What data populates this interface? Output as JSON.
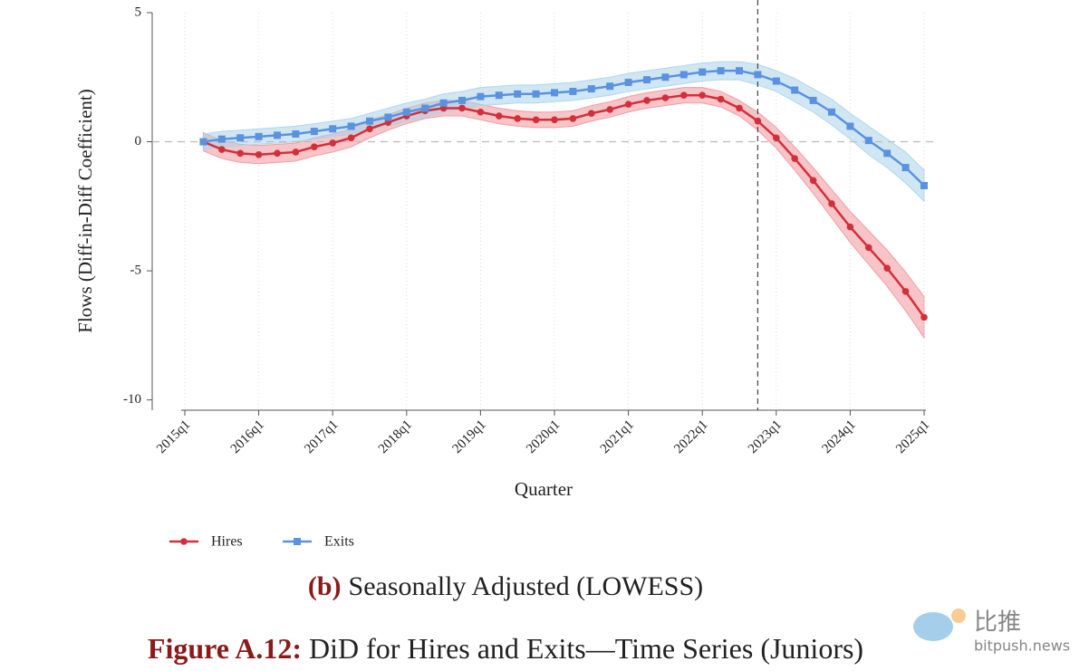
{
  "chart_data": {
    "type": "line",
    "subtitle_label": "(b)",
    "subtitle": "Seasonally Adjusted (LOWESS)",
    "caption_label": "Figure A.12:",
    "caption": "DiD for Hires and Exits—Time Series (Juniors)",
    "xlabel": "Quarter",
    "ylabel": "Flows (Diff-in-Diff Coefficient)",
    "categories": [
      "2015q1",
      null,
      null,
      null,
      "2016q1",
      null,
      null,
      null,
      "2017q1",
      null,
      null,
      null,
      "2018q1",
      null,
      null,
      null,
      "2019q1",
      null,
      null,
      null,
      "2020q1",
      null,
      null,
      null,
      "2021q1",
      null,
      null,
      null,
      "2022q1",
      null,
      null,
      null,
      "2023q1",
      null,
      null,
      null,
      "2024q1",
      null,
      null,
      null,
      "2025q1"
    ],
    "ylim": [
      -10.4,
      5.0
    ],
    "yticks": [
      5,
      0,
      -5,
      -10
    ],
    "reference_lines": {
      "x_index": 31,
      "y": 0
    },
    "grid": true,
    "legend": "bottom-left",
    "series": [
      {
        "name": "Hires",
        "color": "#d32f3b",
        "band_color": "#f0959b",
        "marker": "circle",
        "values": [
          null,
          0,
          -0.3,
          -0.45,
          -0.5,
          -0.45,
          -0.4,
          -0.2,
          -0.05,
          0.15,
          0.5,
          0.75,
          1.0,
          1.2,
          1.3,
          1.3,
          1.15,
          1.0,
          0.9,
          0.85,
          0.85,
          0.9,
          1.1,
          1.25,
          1.45,
          1.6,
          1.7,
          1.8,
          1.8,
          1.65,
          1.3,
          0.8,
          0.15,
          -0.65,
          -1.5,
          -2.4,
          -3.3,
          -4.1,
          -4.9,
          -5.8,
          -6.8
        ],
        "lower": [
          null,
          -0.35,
          -0.65,
          -0.8,
          -0.85,
          -0.8,
          -0.75,
          -0.55,
          -0.4,
          -0.2,
          0.15,
          0.45,
          0.7,
          0.9,
          1.0,
          1.0,
          0.85,
          0.7,
          0.6,
          0.55,
          0.55,
          0.6,
          0.8,
          0.95,
          1.15,
          1.3,
          1.4,
          1.5,
          1.5,
          1.35,
          1.0,
          0.45,
          -0.25,
          -1.1,
          -2.0,
          -2.95,
          -3.9,
          -4.75,
          -5.6,
          -6.55,
          -7.6
        ],
        "upper": [
          null,
          0.35,
          0.05,
          -0.1,
          -0.15,
          -0.1,
          -0.05,
          0.15,
          0.3,
          0.5,
          0.85,
          1.05,
          1.3,
          1.5,
          1.6,
          1.6,
          1.45,
          1.3,
          1.2,
          1.15,
          1.15,
          1.2,
          1.4,
          1.55,
          1.75,
          1.9,
          2.0,
          2.1,
          2.1,
          1.95,
          1.6,
          1.15,
          0.55,
          -0.2,
          -1.0,
          -1.85,
          -2.7,
          -3.45,
          -4.2,
          -5.05,
          -6.0
        ]
      },
      {
        "name": "Exits",
        "color": "#5a92df",
        "band_color": "#a9d3ea",
        "marker": "square",
        "values": [
          null,
          0,
          0.1,
          0.15,
          0.2,
          0.25,
          0.3,
          0.4,
          0.5,
          0.6,
          0.8,
          0.95,
          1.15,
          1.3,
          1.5,
          1.6,
          1.75,
          1.8,
          1.85,
          1.85,
          1.9,
          1.95,
          2.05,
          2.15,
          2.3,
          2.4,
          2.5,
          2.6,
          2.7,
          2.75,
          2.75,
          2.6,
          2.35,
          2.0,
          1.6,
          1.15,
          0.6,
          0.05,
          -0.45,
          -1.0,
          -1.7
        ],
        "lower": [
          null,
          -0.3,
          -0.2,
          -0.15,
          -0.1,
          -0.05,
          0,
          0.1,
          0.2,
          0.3,
          0.5,
          0.6,
          0.8,
          0.95,
          1.15,
          1.25,
          1.4,
          1.45,
          1.5,
          1.5,
          1.55,
          1.6,
          1.7,
          1.8,
          1.95,
          2.05,
          2.15,
          2.25,
          2.35,
          2.4,
          2.4,
          2.2,
          1.95,
          1.55,
          1.15,
          0.65,
          0.1,
          -0.5,
          -1.0,
          -1.6,
          -2.3
        ],
        "upper": [
          null,
          0.3,
          0.4,
          0.45,
          0.5,
          0.55,
          0.6,
          0.7,
          0.8,
          0.9,
          1.1,
          1.3,
          1.5,
          1.65,
          1.85,
          1.95,
          2.1,
          2.15,
          2.2,
          2.2,
          2.25,
          2.3,
          2.4,
          2.5,
          2.65,
          2.75,
          2.85,
          2.95,
          3.05,
          3.1,
          3.1,
          3.0,
          2.75,
          2.45,
          2.05,
          1.65,
          1.1,
          0.6,
          0.1,
          -0.4,
          -1.1
        ]
      }
    ]
  },
  "watermark": {
    "logo_text": "比推",
    "site": "bitpush.news"
  }
}
